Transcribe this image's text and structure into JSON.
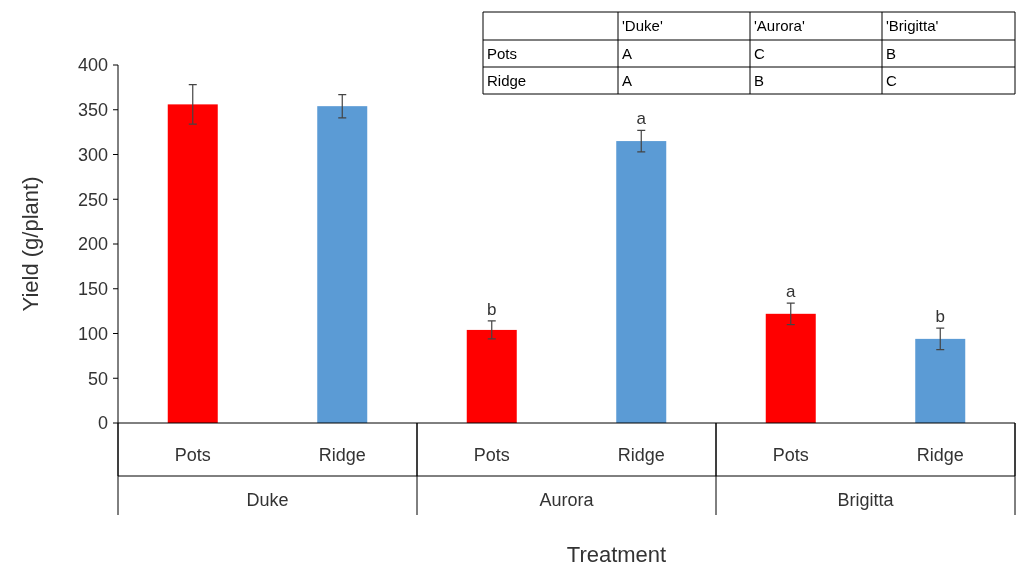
{
  "chart_data": {
    "type": "bar",
    "xlabel": "Treatment",
    "ylabel": "Yield (g/plant)",
    "categories": [
      "Pots",
      "Ridge",
      "Pots",
      "Ridge",
      "Pots",
      "Ridge"
    ],
    "values": [
      356,
      354,
      104,
      315,
      122,
      94
    ],
    "colors": [
      "#ff0000",
      "#5b9bd5",
      "#ff0000",
      "#5b9bd5",
      "#ff0000",
      "#5b9bd5"
    ],
    "errors": [
      22,
      13,
      10,
      12,
      12,
      12
    ],
    "value_labels": [
      null,
      null,
      "b",
      "a",
      "a",
      "b"
    ],
    "ylim": [
      0,
      400
    ],
    "yticks": [
      0,
      50,
      100,
      150,
      200,
      250,
      300,
      350,
      400
    ],
    "grid": false,
    "annotations": [
      "Duke",
      "Aurora",
      "Brigitta",
      "'Duke'",
      "'Aurora'",
      "'Brigitta'",
      "Pots",
      "A",
      "C",
      "B",
      "Ridge",
      "A",
      "B",
      "C"
    ]
  }
}
